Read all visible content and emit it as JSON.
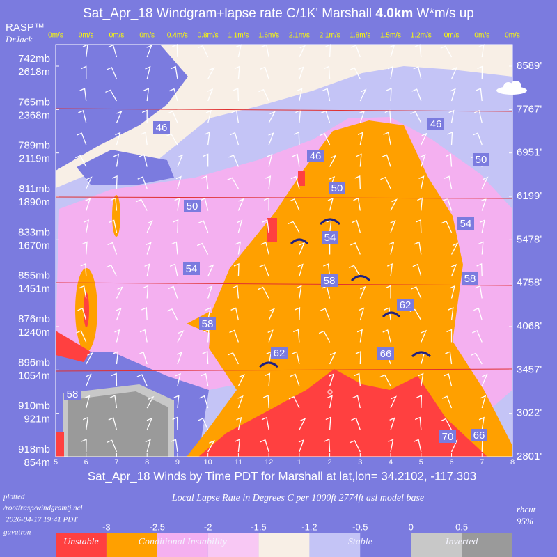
{
  "chart_data": {
    "type": "windgram",
    "title": "Sat_Apr_18 Windgram+lapse rate C/1K'  Marshall",
    "title_bold": "4.0km",
    "title_end": "W*m/s up",
    "brand": "RASP™",
    "author": "DrJack",
    "categories": [
      "5",
      "6",
      "7",
      "8",
      "9",
      "10",
      "11",
      "12",
      "1",
      "2",
      "3",
      "4",
      "5",
      "6",
      "7",
      "8"
    ],
    "x_label": "Sat_Apr_18 Winds by Time PDT for Marshall at lat,lon= 34.2102, -117.303",
    "wind_speed": {
      "values": [
        0,
        0,
        0,
        0,
        0.4,
        0.8,
        1.1,
        1.6,
        2.1,
        2.1,
        1.8,
        1.5,
        1.2,
        0,
        0,
        0
      ],
      "value_labels": [
        "0m/s",
        "0m/s",
        "0m/s",
        "0m/s",
        "0.4m/s",
        "0.8m/s",
        "1.1m/s",
        "1.6m/s",
        "2.1m/s",
        "2.1m/s",
        "1.8m/s",
        "1.5m/s",
        "1.2m/s",
        "0m/s",
        "0m/s",
        "0m/s"
      ]
    },
    "y_levels": [
      {
        "mb": "742mb",
        "m": "2618m",
        "ft": "8589'"
      },
      {
        "mb": "765mb",
        "m": "2368m",
        "ft": "7767'"
      },
      {
        "mb": "789mb",
        "m": "2119m",
        "ft": "6951'"
      },
      {
        "mb": "811mb",
        "m": "1890m",
        "ft": "6199'"
      },
      {
        "mb": "833mb",
        "m": "1670m",
        "ft": "5478'"
      },
      {
        "mb": "855mb",
        "m": "1451m",
        "ft": "4758'"
      },
      {
        "mb": "876mb",
        "m": "1240m",
        "ft": "4068'"
      },
      {
        "mb": "896mb",
        "m": "1054m",
        "ft": "3457'"
      },
      {
        "mb": "910mb",
        "m": "921m",
        "ft": "3022'"
      },
      {
        "mb": "918mb",
        "m": "854m",
        "ft": "2801'"
      }
    ],
    "contour_labels": [
      46,
      46,
      46,
      50,
      50,
      50,
      54,
      54,
      54,
      58,
      58,
      58,
      58,
      62,
      62,
      66,
      66,
      70
    ],
    "footer": {
      "plotted": "plotted",
      "path": "/root/rasp/windgramtj.ncl",
      "date": "2026-04-17 19:41 PDT",
      "host": "gavatron",
      "caption": "Local Lapse Rate in Degrees C per 1000ft  2774ft asl model base",
      "rhcut": "rhcut",
      "rh": "95%"
    },
    "legend": {
      "ticks": [
        -3,
        -2.5,
        -2,
        -1.5,
        -1.2,
        -0.5,
        0,
        0.5
      ],
      "colors": [
        "#ff4040",
        "#ffa000",
        "#f4b0f0",
        "#f8c8f4",
        "#f8efe6",
        "#c4c4f6",
        "#7b7bdf",
        "#c8c8c8",
        "#9a9a9a"
      ],
      "labels": [
        "Unstable",
        "Conditional Instability",
        "Stable",
        "Inverted"
      ]
    }
  }
}
